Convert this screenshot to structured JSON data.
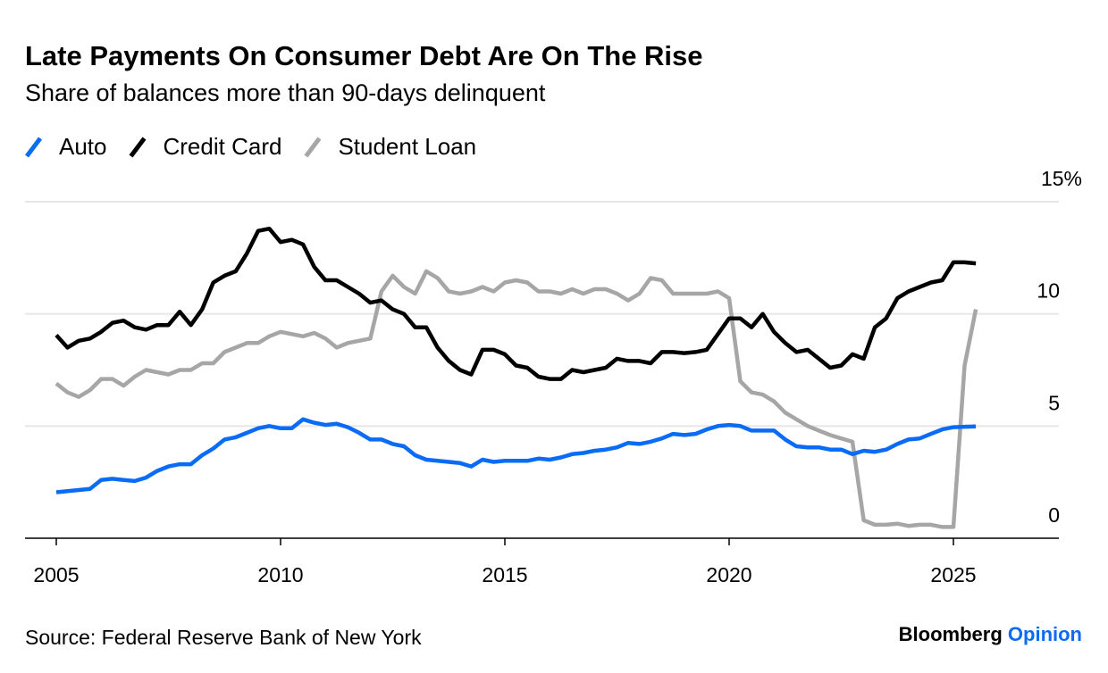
{
  "chart_data": {
    "type": "line",
    "title": "Late Payments On Consumer Debt Are On The Rise",
    "subtitle": "Share of balances more than 90-days delinquent",
    "source": "Source: Federal Reserve Bank of New York",
    "brand": "Bloomberg",
    "brand_highlight": "Opinion",
    "legend": "top-left",
    "grid": true,
    "x": [
      2005,
      2005.25,
      2005.5,
      2005.75,
      2006,
      2006.25,
      2006.5,
      2006.75,
      2007,
      2007.25,
      2007.5,
      2007.75,
      2008,
      2008.25,
      2008.5,
      2008.75,
      2009,
      2009.25,
      2009.5,
      2009.75,
      2010,
      2010.25,
      2010.5,
      2010.75,
      2011,
      2011.25,
      2011.5,
      2011.75,
      2012,
      2012.25,
      2012.5,
      2012.75,
      2013,
      2013.25,
      2013.5,
      2013.75,
      2014,
      2014.25,
      2014.5,
      2014.75,
      2015,
      2015.25,
      2015.5,
      2015.75,
      2016,
      2016.25,
      2016.5,
      2016.75,
      2017,
      2017.25,
      2017.5,
      2017.75,
      2018,
      2018.25,
      2018.5,
      2018.75,
      2019,
      2019.25,
      2019.5,
      2019.75,
      2020,
      2020.25,
      2020.5,
      2020.75,
      2021,
      2021.25,
      2021.5,
      2021.75,
      2022,
      2022.25,
      2022.5,
      2022.75,
      2023,
      2023.25,
      2023.5,
      2023.75,
      2024,
      2024.25,
      2024.5,
      2024.75,
      2025,
      2025.25,
      2025.5
    ],
    "series": [
      {
        "name": "Auto",
        "color": "#0a6cf5",
        "values": [
          2.05,
          2.1,
          2.15,
          2.2,
          2.6,
          2.65,
          2.6,
          2.55,
          2.7,
          3.0,
          3.2,
          3.3,
          3.3,
          3.7,
          4.0,
          4.4,
          4.5,
          4.7,
          4.9,
          5.0,
          4.9,
          4.9,
          5.3,
          5.15,
          5.05,
          5.1,
          4.95,
          4.7,
          4.4,
          4.4,
          4.2,
          4.1,
          3.7,
          3.5,
          3.45,
          3.4,
          3.35,
          3.2,
          3.5,
          3.4,
          3.45,
          3.45,
          3.45,
          3.55,
          3.5,
          3.6,
          3.75,
          3.8,
          3.9,
          3.95,
          4.05,
          4.25,
          4.2,
          4.3,
          4.45,
          4.65,
          4.6,
          4.65,
          4.85,
          5.0,
          5.05,
          5.0,
          4.8,
          4.8,
          4.8,
          4.4,
          4.1,
          4.05,
          4.05,
          3.95,
          3.95,
          3.75,
          3.9,
          3.85,
          3.95,
          4.2,
          4.4,
          4.45,
          4.65,
          4.85,
          4.95,
          4.97,
          4.98
        ]
      },
      {
        "name": "Credit Card",
        "color": "#000000",
        "values": [
          9.05,
          8.5,
          8.8,
          8.9,
          9.2,
          9.6,
          9.7,
          9.4,
          9.3,
          9.5,
          9.5,
          10.1,
          9.5,
          10.2,
          11.4,
          11.7,
          11.9,
          12.7,
          13.7,
          13.8,
          13.2,
          13.3,
          13.1,
          12.1,
          11.5,
          11.5,
          11.2,
          10.9,
          10.5,
          10.6,
          10.2,
          10.0,
          9.4,
          9.4,
          8.5,
          7.9,
          7.5,
          7.3,
          8.4,
          8.4,
          8.2,
          7.7,
          7.6,
          7.2,
          7.1,
          7.1,
          7.5,
          7.4,
          7.5,
          7.6,
          8.0,
          7.9,
          7.9,
          7.8,
          8.3,
          8.3,
          8.25,
          8.3,
          8.4,
          9.1,
          9.8,
          9.8,
          9.4,
          10.0,
          9.2,
          8.7,
          8.3,
          8.4,
          8.0,
          7.6,
          7.7,
          8.2,
          8.0,
          9.4,
          9.8,
          10.7,
          11.0,
          11.2,
          11.4,
          11.5,
          12.3,
          12.3,
          12.25
        ]
      },
      {
        "name": "Student Loan",
        "color": "#a6a6a6",
        "values": [
          6.9,
          6.5,
          6.3,
          6.6,
          7.1,
          7.1,
          6.8,
          7.2,
          7.5,
          7.4,
          7.3,
          7.5,
          7.5,
          7.8,
          7.8,
          8.3,
          8.5,
          8.7,
          8.7,
          9.0,
          9.2,
          9.1,
          9.0,
          9.15,
          8.9,
          8.5,
          8.7,
          8.8,
          8.9,
          11.0,
          11.7,
          11.2,
          10.9,
          11.9,
          11.6,
          11.0,
          10.9,
          11.0,
          11.2,
          11.0,
          11.4,
          11.5,
          11.4,
          11.0,
          11.0,
          10.9,
          11.1,
          10.9,
          11.1,
          11.1,
          10.9,
          10.6,
          10.9,
          11.6,
          11.5,
          10.9,
          10.9,
          10.9,
          10.9,
          11.0,
          10.7,
          7.0,
          6.5,
          6.4,
          6.1,
          5.6,
          5.3,
          5.0,
          4.8,
          4.6,
          4.45,
          4.3,
          0.8,
          0.6,
          0.6,
          0.65,
          0.55,
          0.6,
          0.6,
          0.5,
          0.5,
          7.7,
          10.2
        ]
      }
    ],
    "xlim": [
      2004.3,
      2027.35
    ],
    "xticks": [
      2005,
      2010,
      2015,
      2020,
      2025
    ],
    "ylim": [
      0,
      15
    ],
    "yticks": [
      0,
      5,
      10,
      {
        "value": 15,
        "label": "15%"
      }
    ]
  }
}
